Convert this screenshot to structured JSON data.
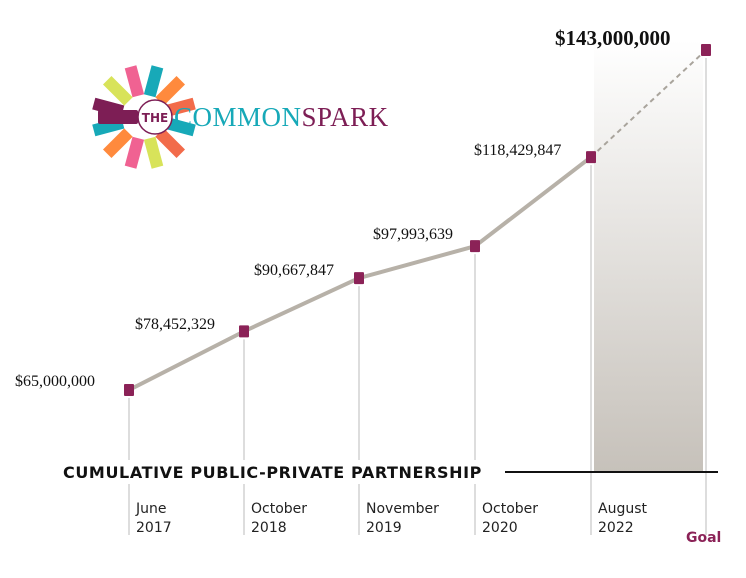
{
  "colors": {
    "line": "#b7b1a8",
    "dashed": "#a9a49c",
    "marker": "#8b2257",
    "gridline": "#dddddd",
    "goal_label": "#8b2257",
    "logo_teal": "#17a9b8",
    "logo_maroon": "#7d1e55",
    "band_top": "#ffffff",
    "band_bottom": "#c6c1ba"
  },
  "logo": {
    "badge": "THE",
    "word1": "COMMON",
    "word2": "SPARK",
    "ray_colors": [
      "#17a9b8",
      "#f26b4a",
      "#d8e35a",
      "#f06292",
      "#ff8a3d",
      "#17a9b8",
      "#7d1e55",
      "#d8e35a",
      "#f06292",
      "#17a9b8",
      "#ff8a3d",
      "#f26b4a"
    ]
  },
  "caption": "CUMULATIVE PUBLIC-PRIVATE PARTNERSHIP",
  "chart_data": {
    "type": "line",
    "categories": [
      [
        "June",
        "2017"
      ],
      [
        "October",
        "2018"
      ],
      [
        "November",
        "2019"
      ],
      [
        "October",
        "2020"
      ],
      [
        "August",
        "2022"
      ],
      [
        "Goal"
      ]
    ],
    "values": [
      65000000,
      78452329,
      90667847,
      97993639,
      118429847,
      143000000
    ],
    "labels": [
      "$65,000,000",
      "$78,452,329",
      "$90,667,847",
      "$97,993,639",
      "$118,429,847",
      "$143,000,000"
    ],
    "projected_segment": {
      "from": "August 2022",
      "to": "Goal",
      "style": "dashed"
    },
    "highlight_band": {
      "from": "August 2022",
      "to": "Goal"
    },
    "title": "",
    "xlabel": "",
    "ylabel": "",
    "grid": "vertical lines at each category",
    "legend": "none"
  }
}
